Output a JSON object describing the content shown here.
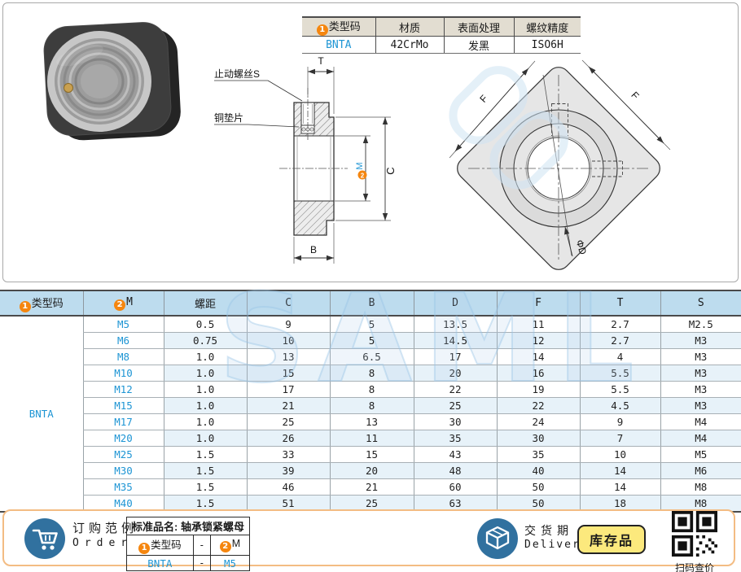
{
  "spec_table": {
    "badge": "1",
    "headers": [
      "类型码",
      "材质",
      "表面处理",
      "螺纹精度"
    ],
    "values": [
      "BNTA",
      "42CrMo",
      "发黑",
      "ISO6H"
    ]
  },
  "drawing": {
    "side": {
      "set_screw_label": "止动螺丝S",
      "washer_label": "铜垫片",
      "dim_t": "T",
      "dim_c": "C",
      "dim_b": "B",
      "m_badge": "2",
      "dim_m": "M"
    },
    "front": {
      "dim_f_left": "F",
      "dim_f_right": "F",
      "dim_d": "ΦD"
    }
  },
  "main_table": {
    "badge1": "1",
    "badge2": "2",
    "headers": [
      "类型码",
      "M",
      "螺距",
      "C",
      "B",
      "D",
      "F",
      "T",
      "S"
    ],
    "type_code": "BNTA",
    "rows": [
      {
        "m": "M5",
        "pitch": "0.5",
        "c": "9",
        "b": "5",
        "d": "13.5",
        "f": "11",
        "t": "2.7",
        "s": "M2.5"
      },
      {
        "m": "M6",
        "pitch": "0.75",
        "c": "10",
        "b": "5",
        "d": "14.5",
        "f": "12",
        "t": "2.7",
        "s": "M3"
      },
      {
        "m": "M8",
        "pitch": "1.0",
        "c": "13",
        "b": "6.5",
        "d": "17",
        "f": "14",
        "t": "4",
        "s": "M3"
      },
      {
        "m": "M10",
        "pitch": "1.0",
        "c": "15",
        "b": "8",
        "d": "20",
        "f": "16",
        "t": "5.5",
        "s": "M3"
      },
      {
        "m": "M12",
        "pitch": "1.0",
        "c": "17",
        "b": "8",
        "d": "22",
        "f": "19",
        "t": "5.5",
        "s": "M3"
      },
      {
        "m": "M15",
        "pitch": "1.0",
        "c": "21",
        "b": "8",
        "d": "25",
        "f": "22",
        "t": "4.5",
        "s": "M3"
      },
      {
        "m": "M17",
        "pitch": "1.0",
        "c": "25",
        "b": "13",
        "d": "30",
        "f": "24",
        "t": "9",
        "s": "M4"
      },
      {
        "m": "M20",
        "pitch": "1.0",
        "c": "26",
        "b": "11",
        "d": "35",
        "f": "30",
        "t": "7",
        "s": "M4"
      },
      {
        "m": "M25",
        "pitch": "1.5",
        "c": "33",
        "b": "15",
        "d": "43",
        "f": "35",
        "t": "10",
        "s": "M5"
      },
      {
        "m": "M30",
        "pitch": "1.5",
        "c": "39",
        "b": "20",
        "d": "48",
        "f": "40",
        "t": "14",
        "s": "M6"
      },
      {
        "m": "M35",
        "pitch": "1.5",
        "c": "46",
        "b": "21",
        "d": "60",
        "f": "50",
        "t": "14",
        "s": "M8"
      },
      {
        "m": "M40",
        "pitch": "1.5",
        "c": "51",
        "b": "25",
        "d": "63",
        "f": "50",
        "t": "18",
        "s": "M8"
      }
    ]
  },
  "footer": {
    "order_cn": "订购范例",
    "order_en": "Order",
    "standard_name": "标准品名: 轴承锁紧螺母",
    "badge1": "1",
    "badge2": "2",
    "order_col1": "类型码",
    "order_dash1": "-",
    "order_col2": "M",
    "order_val1": "BNTA",
    "order_dash2": "-",
    "order_val2": "M5",
    "delivery_cn": "交货期",
    "delivery_en": "Delivery",
    "stock_badge": "库存品",
    "qr_caption": "扫码查价"
  },
  "watermark": "SAML",
  "colors": {
    "accent_orange": "#f5860f",
    "link_blue": "#1e95d4",
    "header_blue": "#bddcee",
    "stripe_blue": "#e7f2f9",
    "footer_border": "#f3bc83",
    "icon_blue": "#31719f",
    "stock_yellow": "#fce97d"
  }
}
